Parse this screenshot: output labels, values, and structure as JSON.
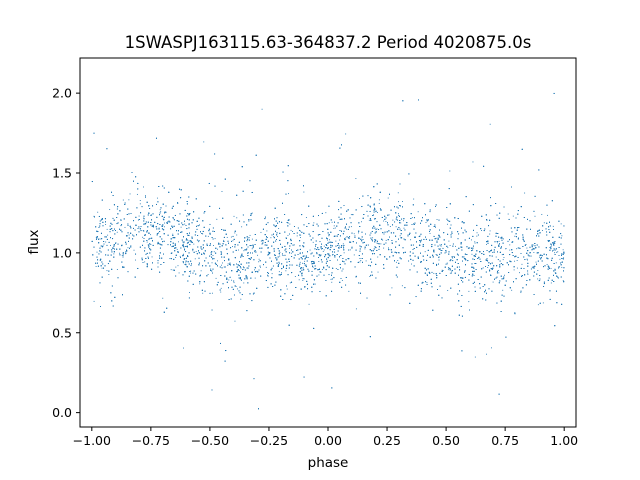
{
  "chart_data": {
    "type": "scatter",
    "title": "1SWASPJ163115.63-364837.2 Period 4020875.0s",
    "xlabel": "phase",
    "ylabel": "flux",
    "xlim": [
      -1.05,
      1.05
    ],
    "ylim": [
      -0.09,
      2.22
    ],
    "x_ticks": [
      {
        "value": -1.0,
        "label": "−1.00"
      },
      {
        "value": -0.75,
        "label": "−0.75"
      },
      {
        "value": -0.5,
        "label": "−0.50"
      },
      {
        "value": -0.25,
        "label": "−0.25"
      },
      {
        "value": 0.0,
        "label": "0.00"
      },
      {
        "value": 0.25,
        "label": "0.25"
      },
      {
        "value": 0.5,
        "label": "0.50"
      },
      {
        "value": 0.75,
        "label": "0.75"
      },
      {
        "value": 1.0,
        "label": "1.00"
      }
    ],
    "y_ticks": [
      {
        "value": 0.0,
        "label": "0.0"
      },
      {
        "value": 0.5,
        "label": "0.5"
      },
      {
        "value": 1.0,
        "label": "1.0"
      },
      {
        "value": 1.5,
        "label": "1.5"
      },
      {
        "value": 2.0,
        "label": "2.0"
      }
    ],
    "grid": false,
    "legend": "none",
    "point_color": "#1f77b4",
    "series": [
      {
        "x_range": [
          -1.0,
          1.0
        ],
        "y_center": 1.02,
        "y_spread": 0.13,
        "y_range": [
          0.0,
          2.1
        ],
        "point_count": 9000
      }
    ]
  }
}
